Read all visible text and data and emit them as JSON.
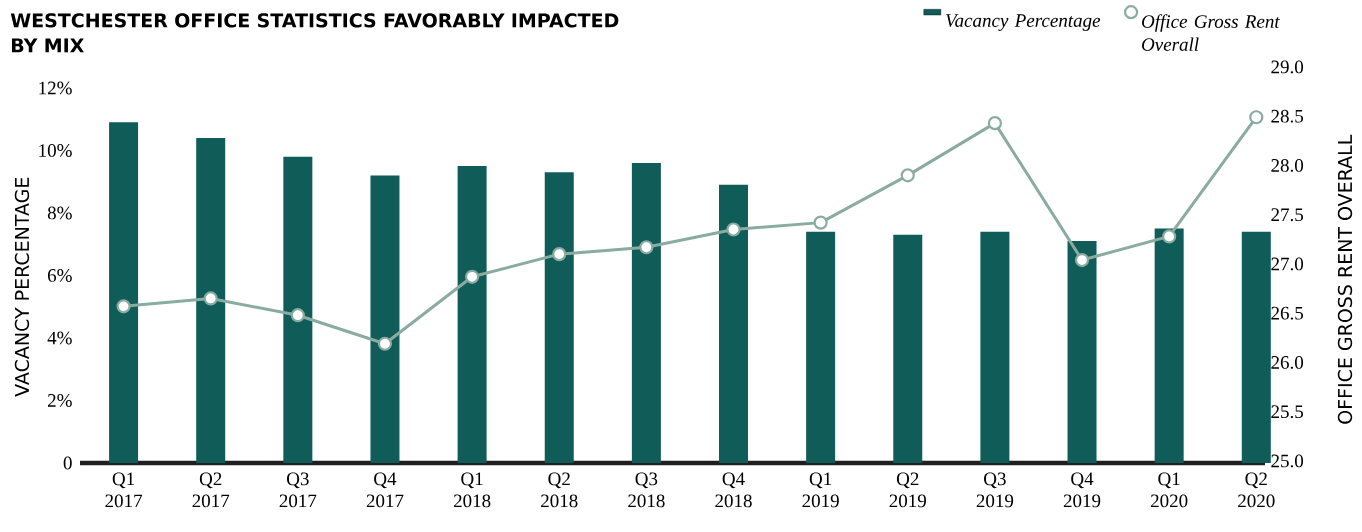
{
  "chart_data": {
    "type": "bar",
    "title": "WESTCHESTER OFFICE STATISTICS FAVORABLY IMPACTED BY MIX",
    "categories": [
      "Q1 2017",
      "Q2 2017",
      "Q3 2017",
      "Q4 2017",
      "Q1 2018",
      "Q2 2018",
      "Q3 2018",
      "Q4 2018",
      "Q1 2019",
      "Q2 2019",
      "Q3 2019",
      "Q4 2019",
      "Q1 2020",
      "Q2 2020"
    ],
    "series": [
      {
        "name": "Vacancy Percentage",
        "color": "#0f5c58",
        "values": [
          10.9,
          10.4,
          9.8,
          9.2,
          9.5,
          9.3,
          9.6,
          8.9,
          7.4,
          7.3,
          7.4,
          7.1,
          7.5,
          7.4
        ]
      },
      {
        "name": "Office Gross Rent Overall",
        "type": "line",
        "axis": "y2",
        "color": "#8aaba0",
        "marker": "circle",
        "line_style": "solid",
        "values": [
          26.57,
          26.65,
          26.48,
          26.19,
          26.87,
          27.1,
          27.17,
          27.35,
          27.42,
          27.9,
          28.43,
          27.04,
          27.28,
          28.49
        ]
      }
    ],
    "ylabel": "VACANCY PERCENTAGE",
    "y2label": "OFFICE GROSS RENT OVERALL",
    "ylim": [
      0,
      12
    ],
    "yticks": [
      0,
      {
        "value": 2,
        "label": "2%"
      },
      {
        "value": 4,
        "label": "4%"
      },
      {
        "value": 6,
        "label": "6%"
      },
      {
        "value": 8,
        "label": "8%"
      },
      {
        "value": 10,
        "label": "10%"
      },
      {
        "value": 12,
        "label": "12%"
      }
    ],
    "y2lim": [
      25,
      29
    ],
    "y2ticks": [
      {
        "value": 25,
        "label": "25.0"
      },
      {
        "value": 25.5,
        "label": "25.5"
      },
      {
        "value": 26,
        "label": "26.0"
      },
      {
        "value": 26.5,
        "label": "26.5"
      },
      {
        "value": 27,
        "label": "27.0"
      },
      {
        "value": 27.5,
        "label": "27.5"
      },
      {
        "value": 28,
        "label": "28.0"
      },
      {
        "value": 28.5,
        "label": "28.5"
      },
      {
        "value": 29,
        "label": "29.0"
      }
    ],
    "legend": "top right"
  }
}
